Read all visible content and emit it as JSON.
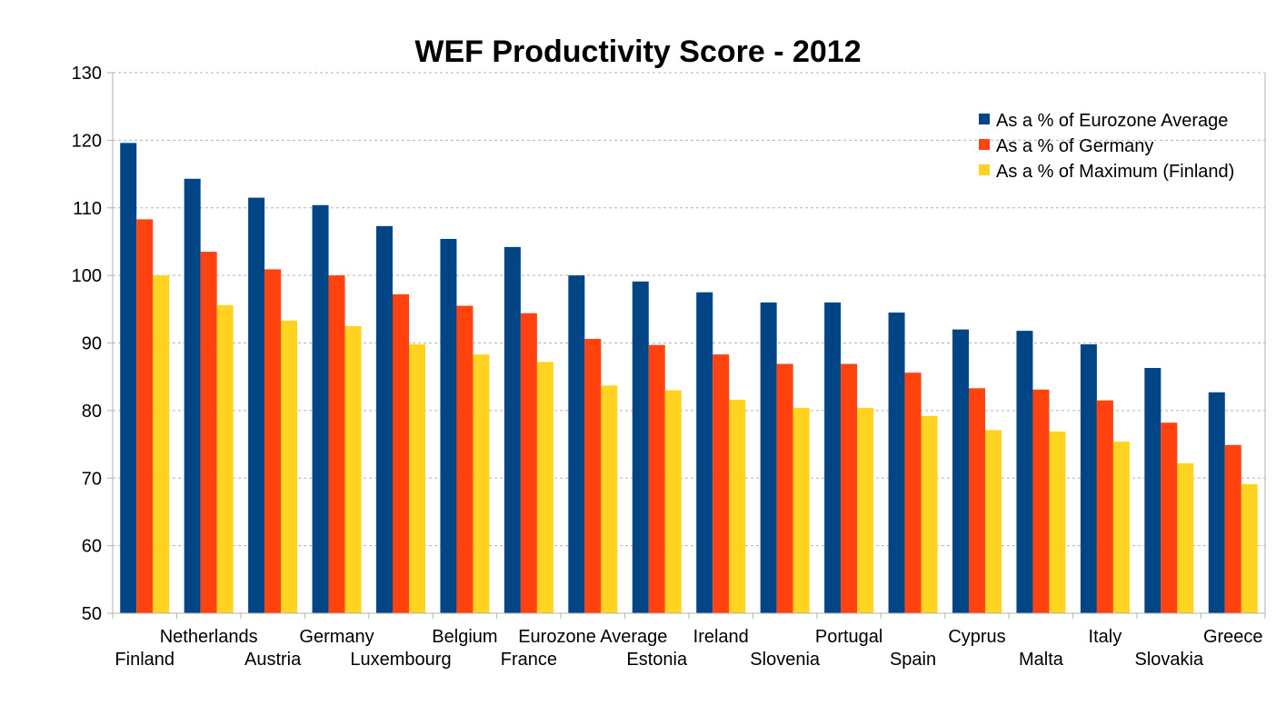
{
  "chart_data": {
    "type": "bar",
    "title": "WEF Productivity Score - 2012",
    "xlabel": "",
    "ylabel": "",
    "ylim": [
      50,
      130
    ],
    "yticks": [
      50,
      60,
      70,
      80,
      90,
      100,
      110,
      120,
      130
    ],
    "grid": true,
    "legend_position": "top-right",
    "categories": [
      "Finland",
      "Netherlands",
      "Austria",
      "Germany",
      "Luxembourg",
      "Belgium",
      "France",
      "Eurozone Average",
      "Estonia",
      "Ireland",
      "Slovenia",
      "Portugal",
      "Spain",
      "Cyprus",
      "Malta",
      "Italy",
      "Slovakia",
      "Greece"
    ],
    "series": [
      {
        "name": "As a % of Eurozone Average",
        "color": "#004586",
        "values": [
          119.6,
          114.3,
          111.5,
          110.4,
          107.3,
          105.4,
          104.2,
          100.0,
          99.1,
          97.5,
          96.0,
          96.0,
          94.5,
          92.0,
          91.8,
          89.8,
          86.3,
          82.7
        ]
      },
      {
        "name": "As a % of Germany",
        "color": "#ff420e",
        "values": [
          108.3,
          103.5,
          100.9,
          100.0,
          97.2,
          95.5,
          94.4,
          90.6,
          89.7,
          88.3,
          86.9,
          86.9,
          85.6,
          83.3,
          83.1,
          81.5,
          78.2,
          74.9
        ]
      },
      {
        "name": "As a % of Maximum (Finland)",
        "color": "#ffd320",
        "values": [
          100.0,
          95.6,
          93.3,
          92.5,
          89.8,
          88.3,
          87.2,
          83.7,
          83.0,
          81.6,
          80.4,
          80.4,
          79.2,
          77.1,
          76.9,
          75.4,
          72.2,
          69.1
        ]
      }
    ]
  }
}
